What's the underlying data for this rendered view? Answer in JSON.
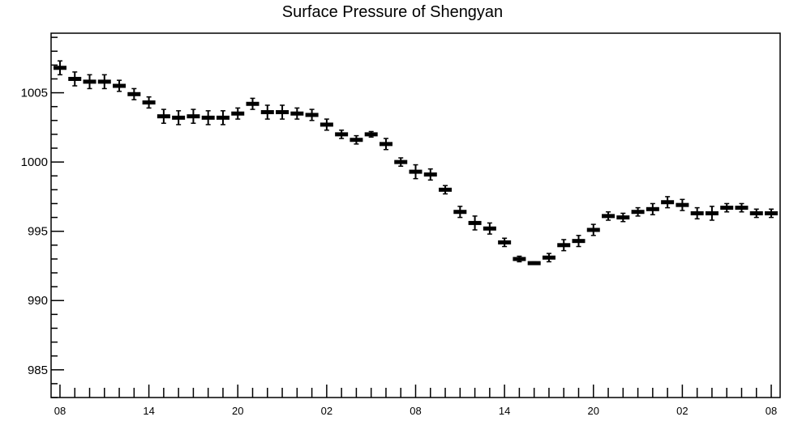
{
  "chart_data": {
    "type": "box",
    "title": "Surface Pressure of Shengyan",
    "xlabel": "",
    "ylabel": "",
    "x_tick_labels": [
      "08",
      "14",
      "20",
      "02",
      "08",
      "14",
      "20",
      "02",
      "08"
    ],
    "x_tick_positions": [
      0,
      6,
      12,
      18,
      24,
      30,
      36,
      42,
      48
    ],
    "xlim": [
      -0.6,
      48.6
    ],
    "ylim": [
      983,
      1009.3
    ],
    "y_tick_values": [
      985,
      990,
      995,
      1000,
      1005
    ],
    "x": [
      0,
      1,
      2,
      3,
      4,
      5,
      6,
      7,
      8,
      9,
      10,
      11,
      12,
      13,
      14,
      15,
      16,
      17,
      18,
      19,
      20,
      21,
      22,
      23,
      24,
      25,
      26,
      27,
      28,
      29,
      30,
      31,
      32,
      33,
      34,
      35,
      36,
      37,
      38,
      39,
      40,
      41,
      42,
      43,
      44,
      45,
      46,
      47,
      48
    ],
    "values": [
      1006.8,
      1006.0,
      1005.8,
      1005.8,
      1005.5,
      1004.9,
      1004.3,
      1003.3,
      1003.2,
      1003.3,
      1003.2,
      1003.2,
      1003.5,
      1004.2,
      1003.6,
      1003.6,
      1003.5,
      1003.4,
      1002.7,
      1002.0,
      1001.6,
      1002.0,
      1001.3,
      1000.0,
      999.3,
      999.1,
      998.0,
      996.4,
      995.6,
      995.2,
      994.2,
      993.0,
      992.7,
      993.1,
      994.0,
      994.3,
      995.1,
      996.1,
      996.0,
      996.4,
      996.6,
      997.1,
      996.9,
      996.3,
      996.3,
      996.7,
      996.7,
      996.3,
      996.3
    ],
    "errors": [
      0.5,
      0.5,
      0.5,
      0.5,
      0.4,
      0.4,
      0.4,
      0.5,
      0.5,
      0.5,
      0.5,
      0.5,
      0.4,
      0.4,
      0.5,
      0.5,
      0.4,
      0.4,
      0.4,
      0.3,
      0.3,
      0.2,
      0.4,
      0.3,
      0.5,
      0.4,
      0.3,
      0.4,
      0.5,
      0.4,
      0.3,
      0.2,
      0.1,
      0.3,
      0.4,
      0.4,
      0.4,
      0.3,
      0.3,
      0.3,
      0.4,
      0.4,
      0.4,
      0.4,
      0.5,
      0.3,
      0.3,
      0.3,
      0.3
    ],
    "grid": false,
    "legend": "none"
  }
}
